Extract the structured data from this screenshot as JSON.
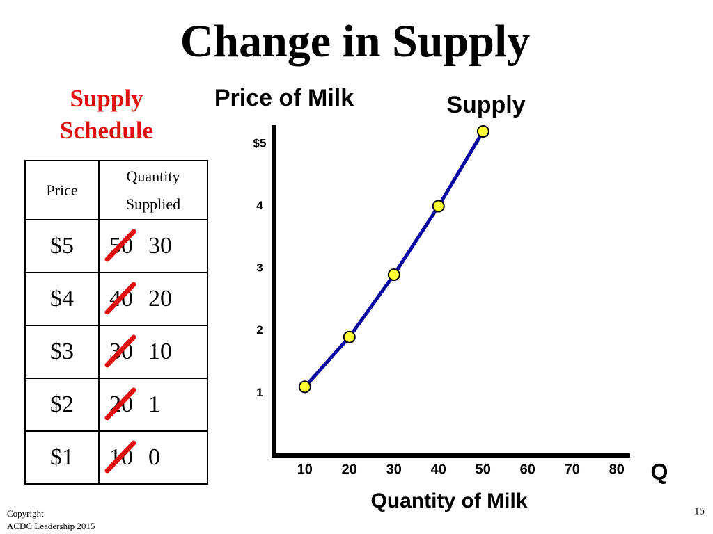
{
  "title": "Change in Supply",
  "schedule": {
    "title": "Supply Schedule",
    "header": [
      "Price",
      "Quantity Supplied"
    ],
    "rows": [
      [
        "$5",
        "50",
        "30"
      ],
      [
        "$4",
        "40",
        "20"
      ],
      [
        "$3",
        "30",
        "10"
      ],
      [
        "$2",
        "20",
        "1"
      ],
      [
        "$1",
        "10",
        "0"
      ]
    ]
  },
  "chart_data": {
    "type": "line",
    "y_label": "Price of Milk",
    "x_label": "Quantity of Milk",
    "annotation": "Q",
    "x": [
      10,
      20,
      30,
      40,
      50
    ],
    "series": [
      {
        "name": "Supply",
        "color": "#0a0aa0",
        "marker_color": "#ffff33",
        "values": [
          1.1,
          1.9,
          2.9,
          4.0,
          5.2
        ]
      }
    ],
    "xlim": [
      3,
      83
    ],
    "xticks": [
      10,
      20,
      30,
      40,
      50,
      60,
      70,
      80
    ],
    "ylim": [
      0,
      5.3
    ],
    "yticks": [
      {
        "value": 5,
        "label": "$5"
      },
      4,
      3,
      2,
      1
    ]
  },
  "footer": {
    "copyright": [
      "Copyright",
      "ACDC Leadership 2015"
    ],
    "page": "15"
  }
}
